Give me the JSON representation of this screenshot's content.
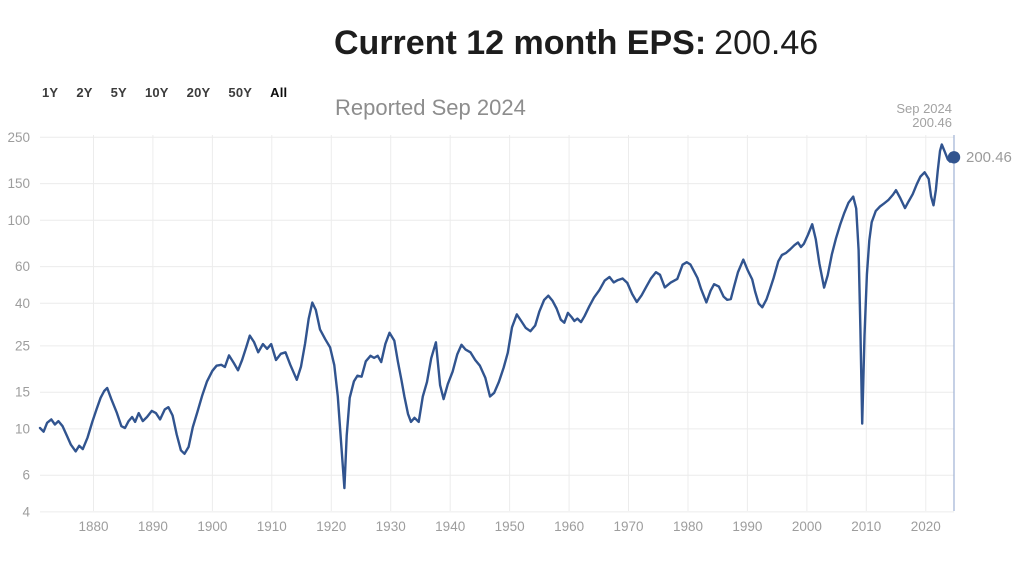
{
  "header": {
    "title_label": "Current 12 month EPS:",
    "title_value": "200.46",
    "subtitle": "Reported Sep 2024"
  },
  "range_selector": {
    "items": [
      "1Y",
      "2Y",
      "5Y",
      "10Y",
      "20Y",
      "50Y",
      "All"
    ],
    "selected": "All"
  },
  "tooltip": {
    "date": "Sep 2024",
    "value": "200.46"
  },
  "latest_point_label": "200.46",
  "chart_data": {
    "type": "line",
    "title": "Current 12 month EPS: 200.46",
    "subtitle": "Reported Sep 2024",
    "xlabel": "",
    "ylabel": "",
    "yscale": "log",
    "grid": true,
    "legend": "none",
    "xlim": [
      1871,
      2024.75
    ],
    "ylim": [
      4.04,
      256.5
    ],
    "yticks": [
      250,
      150,
      100,
      60,
      40,
      25,
      15,
      10,
      6,
      4
    ],
    "xticks": [
      1880,
      1890,
      1900,
      1910,
      1920,
      1930,
      1940,
      1950,
      1960,
      1970,
      1980,
      1990,
      2000,
      2010,
      2020
    ],
    "crosshair_x": 2024.75,
    "latest": {
      "date": "Sep 2024",
      "value": 200.46
    },
    "colors": {
      "line": "#31548f",
      "marker": "#31548f",
      "grid": "#ececec",
      "tick_label": "#9d9d9d",
      "crosshair": "#9fb2d4",
      "annotation": "#a2a2a2"
    },
    "series": [
      {
        "name": "EPS",
        "points": [
          [
            1871.0,
            10.1
          ],
          [
            1871.6,
            9.7
          ],
          [
            1872.2,
            10.7
          ],
          [
            1872.9,
            11.1
          ],
          [
            1873.5,
            10.5
          ],
          [
            1874.1,
            10.9
          ],
          [
            1874.8,
            10.3
          ],
          [
            1875.5,
            9.3
          ],
          [
            1876.2,
            8.4
          ],
          [
            1877.0,
            7.8
          ],
          [
            1877.6,
            8.3
          ],
          [
            1878.2,
            8.0
          ],
          [
            1879.0,
            9.1
          ],
          [
            1879.8,
            10.8
          ],
          [
            1880.5,
            12.4
          ],
          [
            1881.2,
            14.1
          ],
          [
            1881.8,
            15.2
          ],
          [
            1882.3,
            15.7
          ],
          [
            1883.0,
            13.9
          ],
          [
            1883.9,
            12.0
          ],
          [
            1884.7,
            10.3
          ],
          [
            1885.3,
            10.1
          ],
          [
            1885.9,
            10.9
          ],
          [
            1886.5,
            11.4
          ],
          [
            1887.0,
            10.8
          ],
          [
            1887.6,
            11.9
          ],
          [
            1888.3,
            10.9
          ],
          [
            1889.0,
            11.4
          ],
          [
            1889.8,
            12.2
          ],
          [
            1890.5,
            11.9
          ],
          [
            1891.2,
            11.1
          ],
          [
            1892.0,
            12.4
          ],
          [
            1892.6,
            12.7
          ],
          [
            1893.3,
            11.6
          ],
          [
            1894.0,
            9.4
          ],
          [
            1894.7,
            7.9
          ],
          [
            1895.3,
            7.6
          ],
          [
            1896.0,
            8.2
          ],
          [
            1896.7,
            10.2
          ],
          [
            1897.5,
            12.1
          ],
          [
            1898.3,
            14.5
          ],
          [
            1899.1,
            16.9
          ],
          [
            1900.0,
            19.0
          ],
          [
            1900.7,
            20.1
          ],
          [
            1901.5,
            20.3
          ],
          [
            1902.1,
            19.8
          ],
          [
            1902.8,
            22.5
          ],
          [
            1903.6,
            20.7
          ],
          [
            1904.3,
            19.1
          ],
          [
            1905.0,
            21.4
          ],
          [
            1905.7,
            24.7
          ],
          [
            1906.3,
            28.0
          ],
          [
            1907.0,
            26.1
          ],
          [
            1907.7,
            23.3
          ],
          [
            1908.5,
            25.5
          ],
          [
            1909.2,
            24.2
          ],
          [
            1909.9,
            25.5
          ],
          [
            1910.7,
            21.4
          ],
          [
            1911.5,
            22.9
          ],
          [
            1912.3,
            23.3
          ],
          [
            1913.1,
            20.3
          ],
          [
            1914.2,
            17.2
          ],
          [
            1914.9,
            19.9
          ],
          [
            1915.6,
            25.7
          ],
          [
            1916.2,
            33.8
          ],
          [
            1916.8,
            40.3
          ],
          [
            1917.4,
            37.2
          ],
          [
            1918.1,
            30.0
          ],
          [
            1919.0,
            26.9
          ],
          [
            1919.8,
            24.6
          ],
          [
            1920.5,
            20.2
          ],
          [
            1921.1,
            14.3
          ],
          [
            1921.6,
            9.0
          ],
          [
            1922.2,
            5.2
          ],
          [
            1922.6,
            9.3
          ],
          [
            1923.1,
            14.1
          ],
          [
            1923.8,
            16.9
          ],
          [
            1924.4,
            18.0
          ],
          [
            1925.1,
            17.8
          ],
          [
            1925.8,
            21.1
          ],
          [
            1926.6,
            22.4
          ],
          [
            1927.2,
            21.9
          ],
          [
            1927.8,
            22.4
          ],
          [
            1928.4,
            20.9
          ],
          [
            1929.1,
            25.6
          ],
          [
            1929.8,
            28.9
          ],
          [
            1930.6,
            26.5
          ],
          [
            1931.2,
            21.0
          ],
          [
            1931.8,
            17.2
          ],
          [
            1932.3,
            14.3
          ],
          [
            1932.9,
            11.8
          ],
          [
            1933.4,
            10.8
          ],
          [
            1934.0,
            11.3
          ],
          [
            1934.7,
            10.8
          ],
          [
            1935.4,
            14.3
          ],
          [
            1936.1,
            16.8
          ],
          [
            1936.8,
            21.8
          ],
          [
            1937.6,
            26.0
          ],
          [
            1938.3,
            16.2
          ],
          [
            1938.9,
            13.9
          ],
          [
            1939.6,
            16.4
          ],
          [
            1940.4,
            18.8
          ],
          [
            1941.2,
            22.8
          ],
          [
            1941.9,
            25.3
          ],
          [
            1942.6,
            24.0
          ],
          [
            1943.4,
            23.3
          ],
          [
            1944.2,
            21.4
          ],
          [
            1945.0,
            20.1
          ],
          [
            1945.9,
            17.6
          ],
          [
            1946.7,
            14.3
          ],
          [
            1947.4,
            14.9
          ],
          [
            1948.2,
            16.8
          ],
          [
            1949.0,
            19.7
          ],
          [
            1949.7,
            23.2
          ],
          [
            1950.4,
            30.7
          ],
          [
            1951.2,
            35.4
          ],
          [
            1951.9,
            33.1
          ],
          [
            1952.7,
            30.5
          ],
          [
            1953.5,
            29.4
          ],
          [
            1954.3,
            31.3
          ],
          [
            1955.0,
            36.6
          ],
          [
            1955.8,
            41.5
          ],
          [
            1956.5,
            43.5
          ],
          [
            1957.2,
            41.2
          ],
          [
            1957.9,
            37.8
          ],
          [
            1958.6,
            33.4
          ],
          [
            1959.2,
            32.3
          ],
          [
            1959.8,
            36.0
          ],
          [
            1960.4,
            34.4
          ],
          [
            1960.9,
            32.9
          ],
          [
            1961.4,
            33.8
          ],
          [
            1962.0,
            32.5
          ],
          [
            1962.6,
            34.7
          ],
          [
            1963.4,
            38.7
          ],
          [
            1964.2,
            42.6
          ],
          [
            1965.1,
            46.3
          ],
          [
            1966.0,
            51.4
          ],
          [
            1966.8,
            53.5
          ],
          [
            1967.5,
            50.4
          ],
          [
            1968.2,
            51.7
          ],
          [
            1969.0,
            52.6
          ],
          [
            1969.8,
            50.1
          ],
          [
            1970.6,
            44.4
          ],
          [
            1971.4,
            40.6
          ],
          [
            1972.2,
            43.7
          ],
          [
            1973.0,
            48.1
          ],
          [
            1973.8,
            52.8
          ],
          [
            1974.6,
            56.4
          ],
          [
            1975.3,
            54.8
          ],
          [
            1976.1,
            47.7
          ],
          [
            1977.1,
            50.3
          ],
          [
            1978.2,
            52.4
          ],
          [
            1979.1,
            61.3
          ],
          [
            1979.8,
            63.0
          ],
          [
            1980.4,
            61.4
          ],
          [
            1981.0,
            57.1
          ],
          [
            1981.6,
            52.9
          ],
          [
            1982.2,
            46.8
          ],
          [
            1983.1,
            40.4
          ],
          [
            1983.8,
            46.0
          ],
          [
            1984.4,
            49.4
          ],
          [
            1985.2,
            48.1
          ],
          [
            1986.0,
            43.1
          ],
          [
            1986.6,
            41.6
          ],
          [
            1987.2,
            41.9
          ],
          [
            1987.8,
            48.6
          ],
          [
            1988.4,
            56.3
          ],
          [
            1989.3,
            64.8
          ],
          [
            1990.1,
            57.2
          ],
          [
            1990.8,
            52.1
          ],
          [
            1991.3,
            45.6
          ],
          [
            1991.9,
            39.9
          ],
          [
            1992.5,
            38.3
          ],
          [
            1993.2,
            41.7
          ],
          [
            1993.8,
            46.8
          ],
          [
            1994.4,
            52.9
          ],
          [
            1995.2,
            63.6
          ],
          [
            1995.8,
            68.2
          ],
          [
            1996.5,
            69.8
          ],
          [
            1997.2,
            72.6
          ],
          [
            1997.9,
            76.0
          ],
          [
            1998.5,
            78.3
          ],
          [
            1999.0,
            74.5
          ],
          [
            1999.5,
            77.2
          ],
          [
            2000.2,
            85.5
          ],
          [
            2000.9,
            95.8
          ],
          [
            2001.5,
            81.0
          ],
          [
            2002.1,
            62.0
          ],
          [
            2002.9,
            47.6
          ],
          [
            2003.5,
            54.5
          ],
          [
            2004.2,
            68.5
          ],
          [
            2004.9,
            82.0
          ],
          [
            2005.6,
            95.5
          ],
          [
            2006.3,
            108.5
          ],
          [
            2007.0,
            121.5
          ],
          [
            2007.8,
            130.0
          ],
          [
            2008.3,
            114.0
          ],
          [
            2008.7,
            72.0
          ],
          [
            2009.0,
            30.0
          ],
          [
            2009.3,
            10.6
          ],
          [
            2009.7,
            28.0
          ],
          [
            2010.1,
            55.0
          ],
          [
            2010.5,
            80.0
          ],
          [
            2010.9,
            98.0
          ],
          [
            2011.6,
            111.0
          ],
          [
            2012.3,
            116.5
          ],
          [
            2013.0,
            120.5
          ],
          [
            2013.7,
            125.0
          ],
          [
            2014.5,
            133.0
          ],
          [
            2015.0,
            139.5
          ],
          [
            2015.7,
            128.0
          ],
          [
            2016.5,
            114.5
          ],
          [
            2017.1,
            123.0
          ],
          [
            2017.8,
            133.5
          ],
          [
            2018.5,
            149.0
          ],
          [
            2019.1,
            162.0
          ],
          [
            2019.8,
            170.0
          ],
          [
            2020.5,
            158.0
          ],
          [
            2020.9,
            130.0
          ],
          [
            2021.3,
            118.0
          ],
          [
            2021.7,
            140.0
          ],
          [
            2022.0,
            172.0
          ],
          [
            2022.4,
            215.0
          ],
          [
            2022.7,
            231.0
          ],
          [
            2023.2,
            213.0
          ],
          [
            2023.7,
            196.0
          ],
          [
            2024.1,
            191.0
          ],
          [
            2024.4,
            194.0
          ],
          [
            2024.75,
            200.46
          ]
        ]
      }
    ]
  }
}
